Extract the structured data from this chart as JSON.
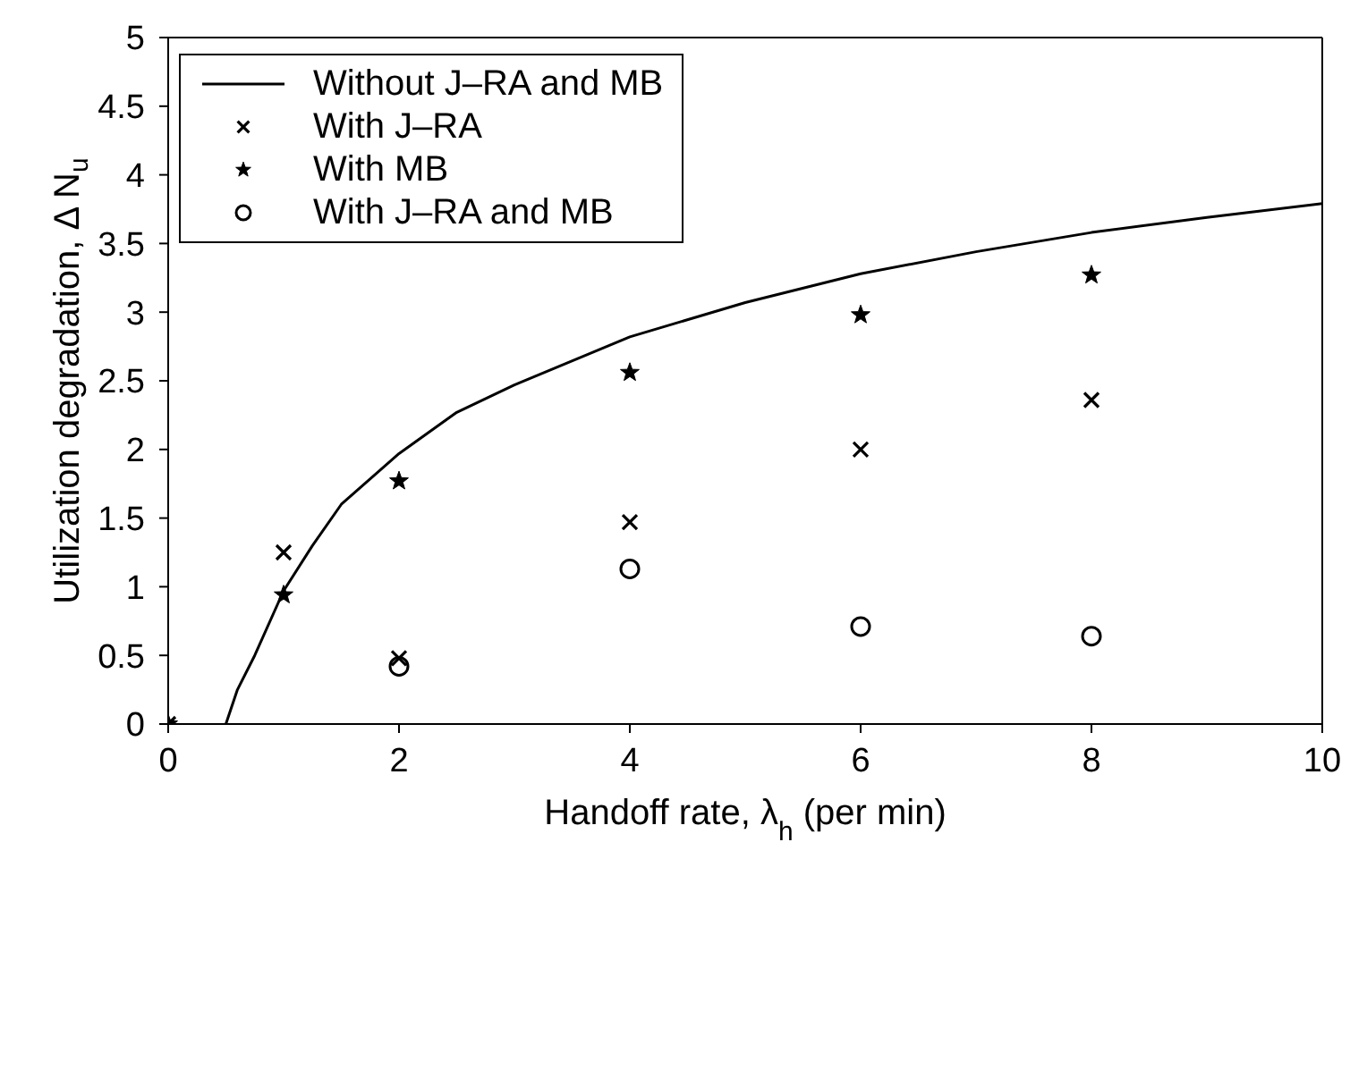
{
  "chart_data": {
    "type": "scatter",
    "xlabel": "Handoff rate, λ$_{h}$ (per min)",
    "ylabel": "Utilization degradation, Δ N$_{u}$",
    "xlim": [
      0,
      10
    ],
    "xticks": [
      0,
      2,
      4,
      6,
      8,
      10
    ],
    "ylim": [
      0,
      5
    ],
    "yticks": [
      0,
      0.5,
      1,
      1.5,
      2,
      2.5,
      3,
      3.5,
      4,
      4.5,
      5
    ],
    "grid": false,
    "legend": "top left",
    "series": [
      {
        "name": "Without J–RA and MB",
        "type": "line",
        "color": "#000000",
        "line_style": "solid",
        "marker": "none",
        "x": [
          0.5,
          0.6,
          0.75,
          1,
          1.25,
          1.5,
          2,
          2.5,
          3,
          4,
          5,
          6,
          7,
          8,
          9,
          10
        ],
        "values": [
          0,
          0.25,
          0.5,
          0.97,
          1.3,
          1.6,
          1.97,
          2.27,
          2.47,
          2.82,
          3.07,
          3.28,
          3.44,
          3.58,
          3.69,
          3.79
        ]
      },
      {
        "name": "With J–RA",
        "type": "scatter",
        "color": "#000000",
        "marker": "cross",
        "x": [
          0,
          1,
          2,
          4,
          6,
          8
        ],
        "values": [
          0,
          1.25,
          0.48,
          1.47,
          2.0,
          2.36
        ]
      },
      {
        "name": "With MB",
        "type": "scatter",
        "color": "#000000",
        "marker": "star",
        "x": [
          0,
          1,
          2,
          4,
          6,
          8
        ],
        "values": [
          0,
          0.94,
          1.77,
          2.56,
          2.98,
          3.27
        ]
      },
      {
        "name": "With J–RA and MB",
        "type": "scatter",
        "color": "#000000",
        "marker": "circle",
        "x": [
          2,
          4,
          6,
          8
        ],
        "values": [
          0.42,
          1.13,
          0.71,
          0.64
        ]
      }
    ]
  }
}
